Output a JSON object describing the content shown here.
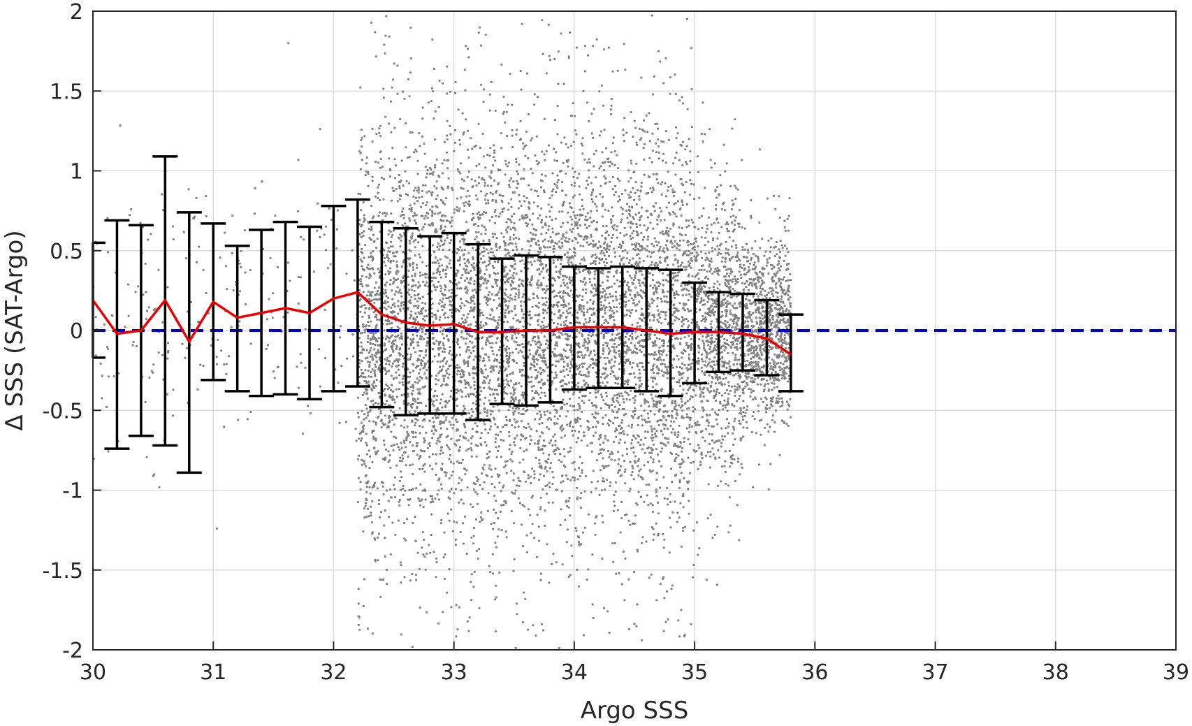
{
  "chart_data": {
    "type": "scatter",
    "title": "",
    "xlabel": "Argo SSS",
    "ylabel": "Δ SSS (SAT-Argo)",
    "xlim": [
      30,
      39
    ],
    "ylim": [
      -2,
      2
    ],
    "xticks": [
      30,
      31,
      32,
      33,
      34,
      35,
      36,
      37,
      38,
      39
    ],
    "yticks": [
      -2,
      -1.5,
      -1,
      -0.5,
      0,
      0.5,
      1,
      1.5,
      2
    ],
    "xtick_labels": [
      "30",
      "31",
      "32",
      "33",
      "34",
      "35",
      "36",
      "37",
      "38",
      "39"
    ],
    "ytick_labels": [
      "-2",
      "-1.5",
      "-1",
      "-0.5",
      "0",
      "0.5",
      "1",
      "1.5",
      "2"
    ],
    "grid": true,
    "reference_line": {
      "y": 0,
      "color": "#0000dd",
      "style": "dashed"
    },
    "scatter_color": "#808080",
    "bin_mean_color": "#ee0000",
    "errorbar_color": "#000000",
    "bin_stats": {
      "x": [
        30.0,
        30.2,
        30.4,
        30.6,
        30.8,
        31.0,
        31.2,
        31.4,
        31.6,
        31.8,
        32.0,
        32.2,
        32.4,
        32.6,
        32.8,
        33.0,
        33.2,
        33.4,
        33.6,
        33.8,
        34.0,
        34.2,
        34.4,
        34.6,
        34.8,
        35.0,
        35.2,
        35.4,
        35.6,
        35.8
      ],
      "mean": [
        0.19,
        -0.02,
        0.0,
        0.19,
        -0.07,
        0.18,
        0.08,
        0.11,
        0.14,
        0.11,
        0.2,
        0.24,
        0.1,
        0.05,
        0.03,
        0.04,
        -0.01,
        -0.01,
        0.0,
        0.0,
        0.02,
        0.02,
        0.02,
        0.0,
        -0.02,
        -0.01,
        -0.01,
        -0.02,
        -0.05,
        -0.15
      ],
      "upper": [
        0.55,
        0.69,
        0.66,
        1.09,
        0.74,
        0.67,
        0.53,
        0.63,
        0.68,
        0.65,
        0.78,
        0.82,
        0.68,
        0.64,
        0.59,
        0.61,
        0.54,
        0.45,
        0.47,
        0.46,
        0.4,
        0.39,
        0.4,
        0.39,
        0.38,
        0.3,
        0.24,
        0.23,
        0.19,
        0.1
      ],
      "lower": [
        -0.17,
        -0.74,
        -0.66,
        -0.72,
        -0.89,
        -0.31,
        -0.38,
        -0.41,
        -0.4,
        -0.43,
        -0.38,
        -0.35,
        -0.48,
        -0.53,
        -0.52,
        -0.52,
        -0.56,
        -0.46,
        -0.47,
        -0.45,
        -0.37,
        -0.36,
        -0.36,
        -0.38,
        -0.41,
        -0.33,
        -0.26,
        -0.25,
        -0.28,
        -0.38
      ]
    },
    "scatter_density": {
      "centers": [
        32.4,
        32.8,
        33.2,
        33.6,
        34.0,
        34.4,
        34.8,
        35.2,
        35.6
      ],
      "spread": [
        0.62,
        0.66,
        0.65,
        0.62,
        0.58,
        0.6,
        0.62,
        0.45,
        0.3
      ]
    }
  }
}
